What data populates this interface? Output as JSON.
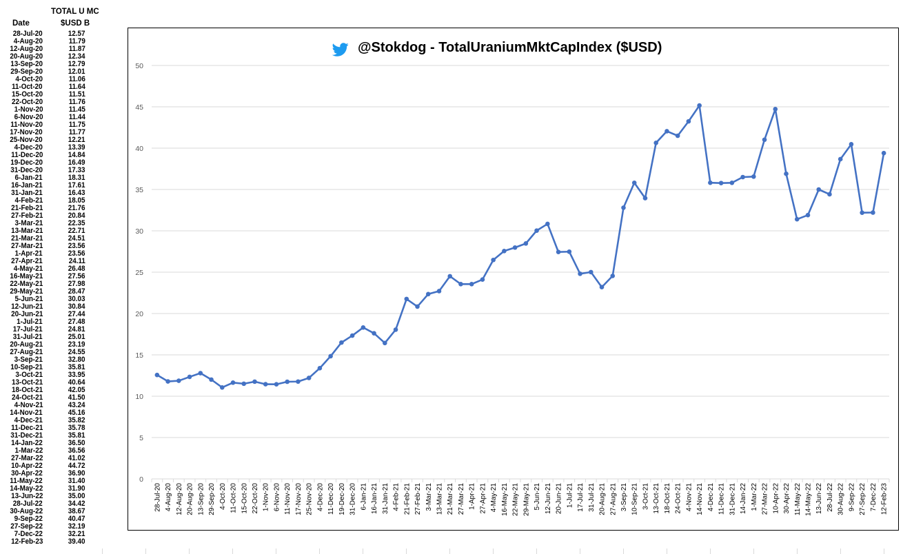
{
  "table": {
    "header_top": "TOTAL U MC",
    "header_date": "Date",
    "header_unit": "$USD B",
    "rows": [
      {
        "date": "28-Jul-20",
        "value": "12.57"
      },
      {
        "date": "4-Aug-20",
        "value": "11.79"
      },
      {
        "date": "12-Aug-20",
        "value": "11.87"
      },
      {
        "date": "20-Aug-20",
        "value": "12.34"
      },
      {
        "date": "13-Sep-20",
        "value": "12.79"
      },
      {
        "date": "29-Sep-20",
        "value": "12.01"
      },
      {
        "date": "4-Oct-20",
        "value": "11.06"
      },
      {
        "date": "11-Oct-20",
        "value": "11.64"
      },
      {
        "date": "15-Oct-20",
        "value": "11.51"
      },
      {
        "date": "22-Oct-20",
        "value": "11.76"
      },
      {
        "date": "1-Nov-20",
        "value": "11.45"
      },
      {
        "date": "6-Nov-20",
        "value": "11.44"
      },
      {
        "date": "11-Nov-20",
        "value": "11.75"
      },
      {
        "date": "17-Nov-20",
        "value": "11.77"
      },
      {
        "date": "25-Nov-20",
        "value": "12.21"
      },
      {
        "date": "4-Dec-20",
        "value": "13.39"
      },
      {
        "date": "11-Dec-20",
        "value": "14.84"
      },
      {
        "date": "19-Dec-20",
        "value": "16.49"
      },
      {
        "date": "31-Dec-20",
        "value": "17.33"
      },
      {
        "date": "6-Jan-21",
        "value": "18.31"
      },
      {
        "date": "16-Jan-21",
        "value": "17.61"
      },
      {
        "date": "31-Jan-21",
        "value": "16.43"
      },
      {
        "date": "4-Feb-21",
        "value": "18.05"
      },
      {
        "date": "21-Feb-21",
        "value": "21.76"
      },
      {
        "date": "27-Feb-21",
        "value": "20.84"
      },
      {
        "date": "3-Mar-21",
        "value": "22.35"
      },
      {
        "date": "13-Mar-21",
        "value": "22.71"
      },
      {
        "date": "21-Mar-21",
        "value": "24.51"
      },
      {
        "date": "27-Mar-21",
        "value": "23.56"
      },
      {
        "date": "1-Apr-21",
        "value": "23.56"
      },
      {
        "date": "27-Apr-21",
        "value": "24.11"
      },
      {
        "date": "4-May-21",
        "value": "26.48"
      },
      {
        "date": "16-May-21",
        "value": "27.56"
      },
      {
        "date": "22-May-21",
        "value": "27.98"
      },
      {
        "date": "29-May-21",
        "value": "28.47"
      },
      {
        "date": "5-Jun-21",
        "value": "30.03"
      },
      {
        "date": "12-Jun-21",
        "value": "30.84"
      },
      {
        "date": "20-Jun-21",
        "value": "27.44"
      },
      {
        "date": "1-Jul-21",
        "value": "27.48"
      },
      {
        "date": "17-Jul-21",
        "value": "24.81"
      },
      {
        "date": "31-Jul-21",
        "value": "25.01"
      },
      {
        "date": "20-Aug-21",
        "value": "23.19"
      },
      {
        "date": "27-Aug-21",
        "value": "24.55"
      },
      {
        "date": "3-Sep-21",
        "value": "32.80"
      },
      {
        "date": "10-Sep-21",
        "value": "35.81"
      },
      {
        "date": "3-Oct-21",
        "value": "33.95"
      },
      {
        "date": "13-Oct-21",
        "value": "40.64"
      },
      {
        "date": "18-Oct-21",
        "value": "42.05"
      },
      {
        "date": "24-Oct-21",
        "value": "41.50"
      },
      {
        "date": "4-Nov-21",
        "value": "43.24"
      },
      {
        "date": "14-Nov-21",
        "value": "45.16"
      },
      {
        "date": "4-Dec-21",
        "value": "35.82"
      },
      {
        "date": "11-Dec-21",
        "value": "35.78"
      },
      {
        "date": "31-Dec-21",
        "value": "35.81"
      },
      {
        "date": "14-Jan-22",
        "value": "36.50"
      },
      {
        "date": "1-Mar-22",
        "value": "36.56"
      },
      {
        "date": "27-Mar-22",
        "value": "41.02"
      },
      {
        "date": "10-Apr-22",
        "value": "44.72"
      },
      {
        "date": "30-Apr-22",
        "value": "36.90"
      },
      {
        "date": "11-May-22",
        "value": "31.40"
      },
      {
        "date": "14-May-22",
        "value": "31.90"
      },
      {
        "date": "13-Jun-22",
        "value": "35.00"
      },
      {
        "date": "28-Jul-22",
        "value": "34.42"
      },
      {
        "date": "30-Aug-22",
        "value": "38.67"
      },
      {
        "date": "9-Sep-22",
        "value": "40.47"
      },
      {
        "date": "27-Sep-22",
        "value": "32.19"
      },
      {
        "date": "7-Dec-22",
        "value": "32.21"
      },
      {
        "date": "12-Feb-23",
        "value": "39.40"
      }
    ]
  },
  "colors": {
    "line": "#4472c4",
    "grid": "#d9d9d9",
    "twitter": "#1d9bf0",
    "axis_text": "#595959"
  },
  "title_icon": "twitter-bird-icon",
  "chart_data": {
    "type": "line",
    "title": "@Stokdog - TotalUraniumMktCapIndex ($USD)",
    "xlabel": "",
    "ylabel": "",
    "ylim": [
      0,
      50
    ],
    "yticks": [
      0,
      5,
      10,
      15,
      20,
      25,
      30,
      35,
      40,
      45,
      50
    ],
    "grid": true,
    "legend": "none",
    "x": [
      "28-Jul-20",
      "4-Aug-20",
      "12-Aug-20",
      "20-Aug-20",
      "13-Sep-20",
      "29-Sep-20",
      "4-Oct-20",
      "11-Oct-20",
      "15-Oct-20",
      "22-Oct-20",
      "1-Nov-20",
      "6-Nov-20",
      "11-Nov-20",
      "17-Nov-20",
      "25-Nov-20",
      "4-Dec-20",
      "11-Dec-20",
      "19-Dec-20",
      "31-Dec-20",
      "6-Jan-21",
      "16-Jan-21",
      "31-Jan-21",
      "4-Feb-21",
      "21-Feb-21",
      "27-Feb-21",
      "3-Mar-21",
      "13-Mar-21",
      "21-Mar-21",
      "27-Mar-21",
      "1-Apr-21",
      "27-Apr-21",
      "4-May-21",
      "16-May-21",
      "22-May-21",
      "29-May-21",
      "5-Jun-21",
      "12-Jun-21",
      "20-Jun-21",
      "1-Jul-21",
      "17-Jul-21",
      "31-Jul-21",
      "20-Aug-21",
      "27-Aug-21",
      "3-Sep-21",
      "10-Sep-21",
      "3-Oct-21",
      "13-Oct-21",
      "18-Oct-21",
      "24-Oct-21",
      "4-Nov-21",
      "14-Nov-21",
      "4-Dec-21",
      "11-Dec-21",
      "31-Dec-21",
      "14-Jan-22",
      "1-Mar-22",
      "27-Mar-22",
      "10-Apr-22",
      "30-Apr-22",
      "11-May-22",
      "14-May-22",
      "13-Jun-22",
      "28-Jul-22",
      "30-Aug-22",
      "9-Sep-22",
      "27-Sep-22",
      "7-Dec-22",
      "12-Feb-23"
    ],
    "series": [
      {
        "values": [
          12.57,
          11.79,
          11.87,
          12.34,
          12.79,
          12.01,
          11.06,
          11.64,
          11.51,
          11.76,
          11.45,
          11.44,
          11.75,
          11.77,
          12.21,
          13.39,
          14.84,
          16.49,
          17.33,
          18.31,
          17.61,
          16.43,
          18.05,
          21.76,
          20.84,
          22.35,
          22.71,
          24.51,
          23.56,
          23.56,
          24.11,
          26.48,
          27.56,
          27.98,
          28.47,
          30.03,
          30.84,
          27.44,
          27.48,
          24.81,
          25.01,
          23.19,
          24.55,
          32.8,
          35.81,
          33.95,
          40.64,
          42.05,
          41.5,
          43.24,
          45.16,
          35.82,
          35.78,
          35.81,
          36.5,
          36.56,
          41.02,
          44.72,
          36.9,
          31.4,
          31.9,
          35.0,
          34.42,
          38.67,
          40.47,
          32.19,
          32.21,
          39.4
        ]
      }
    ]
  }
}
